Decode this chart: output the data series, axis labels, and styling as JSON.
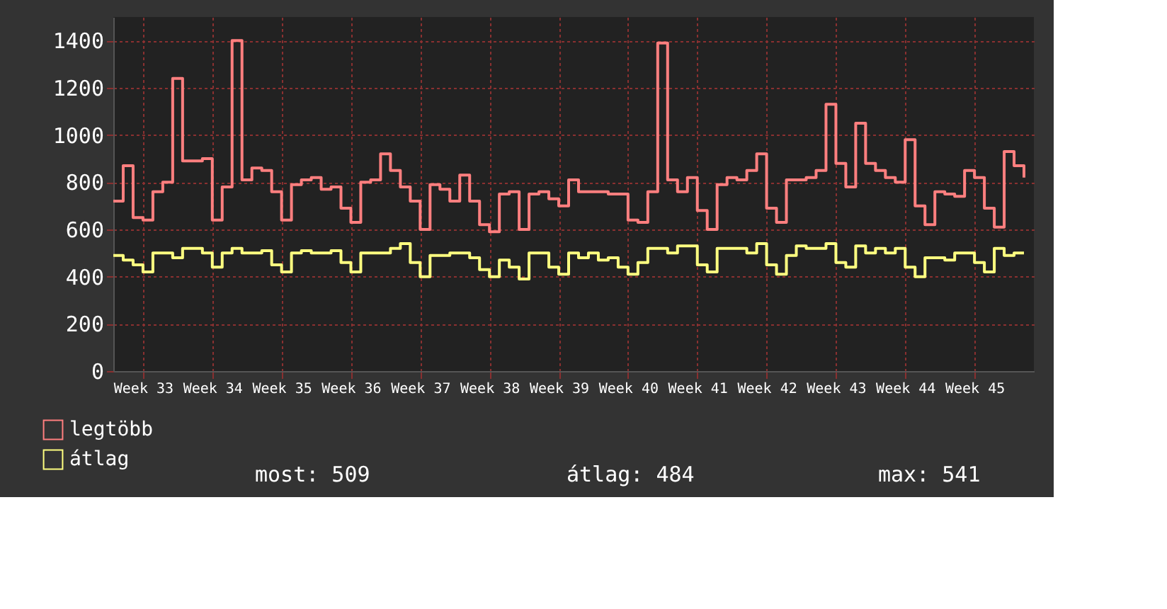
{
  "chart_data": {
    "type": "step",
    "categories": [
      null,
      null,
      null,
      "Week 33",
      null,
      null,
      null,
      null,
      null,
      null,
      "Week 34",
      null,
      null,
      null,
      null,
      null,
      null,
      "Week 35",
      null,
      null,
      null,
      null,
      null,
      null,
      "Week 36",
      null,
      null,
      null,
      null,
      null,
      null,
      "Week 37",
      null,
      null,
      null,
      null,
      null,
      null,
      "Week 38",
      null,
      null,
      null,
      null,
      null,
      null,
      "Week 39",
      null,
      null,
      null,
      null,
      null,
      null,
      "Week 40",
      null,
      null,
      null,
      null,
      null,
      null,
      "Week 41",
      null,
      null,
      null,
      null,
      null,
      null,
      "Week 42",
      null,
      null,
      null,
      null,
      null,
      null,
      "Week 43",
      null,
      null,
      null,
      null,
      null,
      null,
      "Week 44",
      null,
      null,
      null,
      null,
      null,
      null,
      "Week 45",
      null,
      null,
      null,
      null,
      null
    ],
    "series": [
      {
        "name": "legtöbb",
        "color": "#ff7f7f",
        "values": [
          720,
          870,
          650,
          640,
          760,
          800,
          1240,
          890,
          890,
          900,
          640,
          780,
          1400,
          810,
          860,
          850,
          760,
          640,
          790,
          810,
          820,
          770,
          780,
          690,
          630,
          800,
          810,
          920,
          850,
          780,
          720,
          600,
          790,
          770,
          720,
          830,
          720,
          620,
          590,
          750,
          760,
          600,
          750,
          760,
          730,
          700,
          810,
          760,
          760,
          760,
          750,
          750,
          640,
          630,
          760,
          1390,
          810,
          760,
          820,
          680,
          600,
          790,
          820,
          810,
          850,
          920,
          690,
          630,
          810,
          810,
          820,
          850,
          1130,
          880,
          780,
          1050,
          880,
          850,
          820,
          800,
          980,
          700,
          620,
          760,
          750,
          740,
          850,
          820,
          690,
          610,
          930,
          870,
          820
        ]
      },
      {
        "name": "átlag",
        "color": "#ffff80",
        "values": [
          490,
          470,
          450,
          420,
          500,
          500,
          480,
          520,
          520,
          500,
          440,
          500,
          520,
          500,
          500,
          510,
          450,
          420,
          500,
          510,
          500,
          500,
          510,
          460,
          420,
          500,
          500,
          500,
          520,
          540,
          460,
          400,
          490,
          490,
          500,
          500,
          480,
          430,
          400,
          470,
          440,
          390,
          500,
          500,
          440,
          410,
          500,
          480,
          500,
          470,
          480,
          440,
          410,
          460,
          520,
          520,
          500,
          530,
          530,
          450,
          420,
          520,
          520,
          520,
          500,
          540,
          450,
          410,
          490,
          530,
          520,
          520,
          540,
          460,
          440,
          530,
          500,
          520,
          500,
          520,
          440,
          400,
          480,
          480,
          470,
          500,
          500,
          460,
          420,
          520,
          490,
          500,
          500
        ]
      }
    ],
    "ylim": [
      0,
      1500
    ],
    "yticks": [
      0,
      200,
      400,
      600,
      800,
      1000,
      1200,
      1400
    ],
    "grid": true,
    "legend": "bottom left",
    "annotations": [
      "most: 509",
      "átlag: 484",
      "max: 541"
    ]
  }
}
